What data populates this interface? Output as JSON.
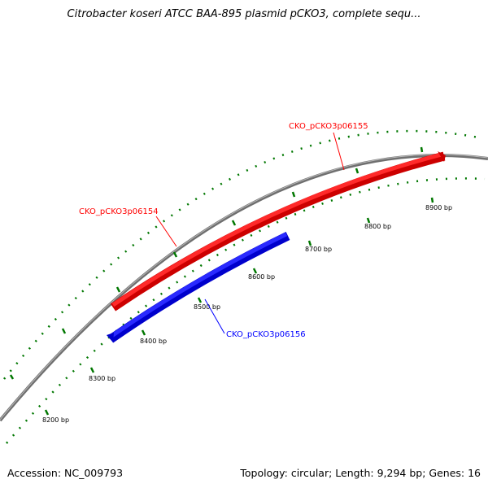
{
  "title": "Citrobacter koseri ATCC BAA-895 plasmid pCKO3, complete sequ...",
  "footer": {
    "accession": "Accession: NC_009793",
    "summary": "Topology: circular; Length: 9,294 bp; Genes: 16"
  },
  "ticks": [
    {
      "bp": 8200,
      "label": "8200 bp"
    },
    {
      "bp": 8300,
      "label": "8300 bp"
    },
    {
      "bp": 8400,
      "label": "8400 bp"
    },
    {
      "bp": 8500,
      "label": "8500 bp"
    },
    {
      "bp": 8600,
      "label": "8600 bp"
    },
    {
      "bp": 8700,
      "label": "8700 bp"
    },
    {
      "bp": 8800,
      "label": "8800 bp"
    },
    {
      "bp": 8900,
      "label": "8900 bp"
    }
  ],
  "genes": [
    {
      "id": "CKO_pCKO3p06154",
      "strand": "plus",
      "color": "#ff0000"
    },
    {
      "id": "CKO_pCKO3p06155",
      "strand": "plus",
      "color": "#ff0000"
    },
    {
      "id": "CKO_pCKO3p06156",
      "strand": "minus",
      "color": "#0000ff"
    }
  ],
  "colors": {
    "backbone": "#808080",
    "tick": "#007700"
  }
}
